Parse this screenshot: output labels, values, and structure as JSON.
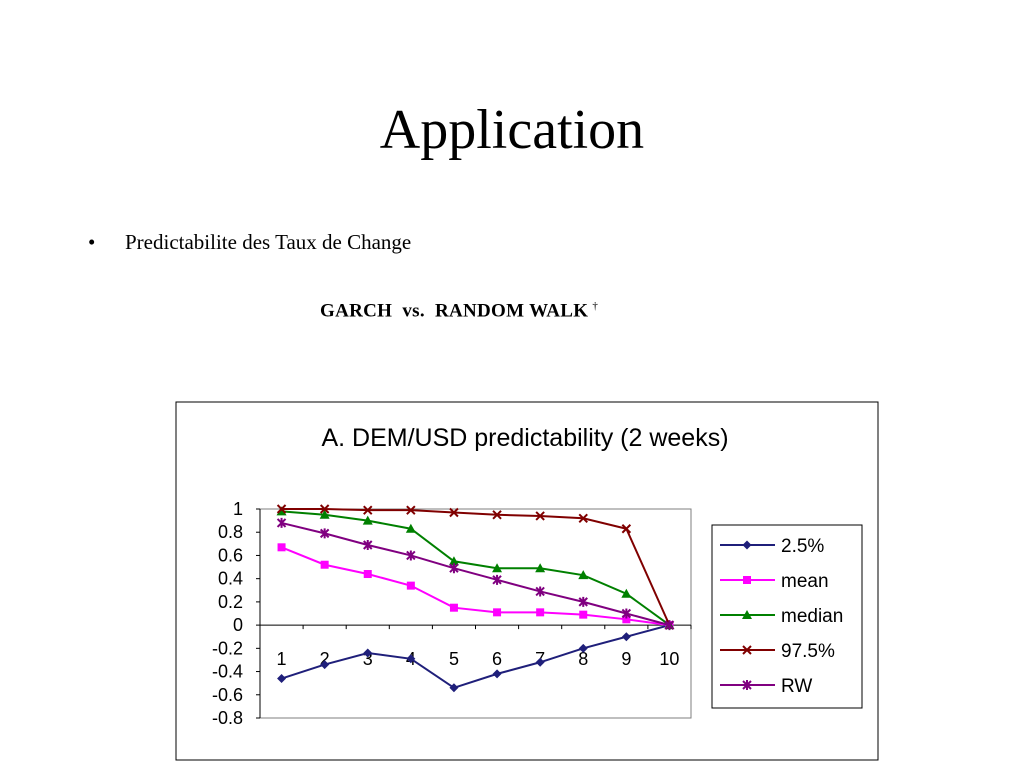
{
  "slide": {
    "title": "Application",
    "bullet": "•",
    "bullet_text": "Predictabilite des Taux de Change",
    "subtitle": "GARCH  vs.  RANDOM WALK",
    "subtitle_mark": "†"
  },
  "chart_data": {
    "type": "line",
    "title": "A. DEM/USD predictability (2 weeks)",
    "xlabel": "",
    "ylabel": "",
    "x": [
      1,
      2,
      3,
      4,
      5,
      6,
      7,
      8,
      9,
      10
    ],
    "ylim": [
      -0.8,
      1
    ],
    "yticks": [
      "1",
      "0.8",
      "0.6",
      "0.4",
      "0.2",
      "0",
      "-0.2",
      "-0.4",
      "-0.6",
      "-0.8"
    ],
    "legend_position": "right",
    "series": [
      {
        "name": "2.5%",
        "color": "#1f1f7a",
        "marker": "diamond",
        "values": [
          -0.46,
          -0.34,
          -0.24,
          -0.29,
          -0.54,
          -0.42,
          -0.32,
          -0.2,
          -0.1,
          0
        ]
      },
      {
        "name": "mean",
        "color": "#ff00ff",
        "marker": "square",
        "values": [
          0.67,
          0.52,
          0.44,
          0.34,
          0.15,
          0.11,
          0.11,
          0.09,
          0.05,
          0
        ]
      },
      {
        "name": "median",
        "color": "#008000",
        "marker": "triangle",
        "values": [
          0.98,
          0.95,
          0.9,
          0.83,
          0.55,
          0.49,
          0.49,
          0.43,
          0.27,
          0
        ]
      },
      {
        "name": "97.5%",
        "color": "#800000",
        "marker": "x",
        "values": [
          1.0,
          1.0,
          0.99,
          0.99,
          0.97,
          0.95,
          0.94,
          0.92,
          0.83,
          0
        ]
      },
      {
        "name": "RW",
        "color": "#800080",
        "marker": "star",
        "values": [
          0.88,
          0.79,
          0.69,
          0.6,
          0.49,
          0.39,
          0.29,
          0.2,
          0.1,
          0
        ]
      }
    ]
  }
}
